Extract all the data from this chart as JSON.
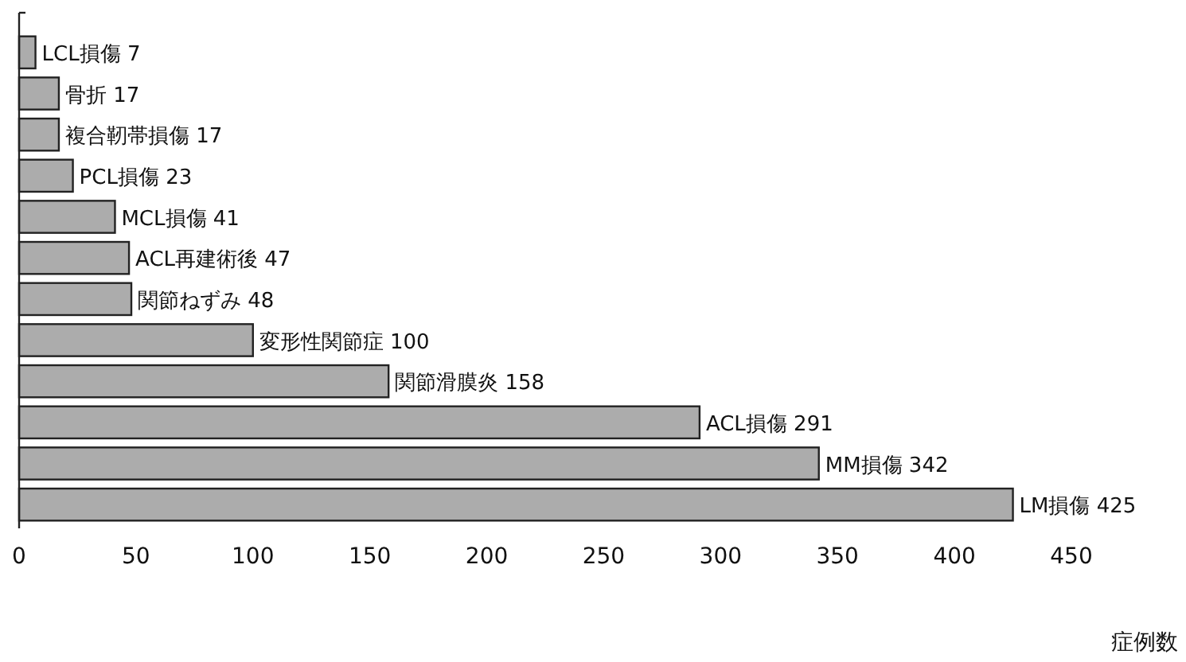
{
  "chart_data": {
    "type": "bar",
    "orientation": "horizontal",
    "xlabel": "症例数",
    "categories": [
      null,
      null,
      null,
      null,
      null,
      null,
      null,
      null,
      null,
      null,
      null,
      null
    ],
    "values": [
      7,
      17,
      17,
      23,
      41,
      47,
      48,
      100,
      158,
      291,
      342,
      425
    ],
    "value_labels": [
      "LCL損傷 7",
      "骨折 17",
      "複合靭帯損傷 17",
      "PCL損傷 23",
      "MCL損傷 41",
      "ACL再建術後 47",
      "関節ねずみ 48",
      "変形性関節症 100",
      "関節滑膜炎 158",
      "ACL損傷 291",
      "MM損傷 342",
      "LM損傷 425"
    ],
    "color": "#acacac",
    "xlim": [
      0,
      450
    ],
    "xticks": [
      0,
      50,
      100,
      150,
      200,
      250,
      300,
      350,
      400,
      450
    ],
    "grid": false
  }
}
